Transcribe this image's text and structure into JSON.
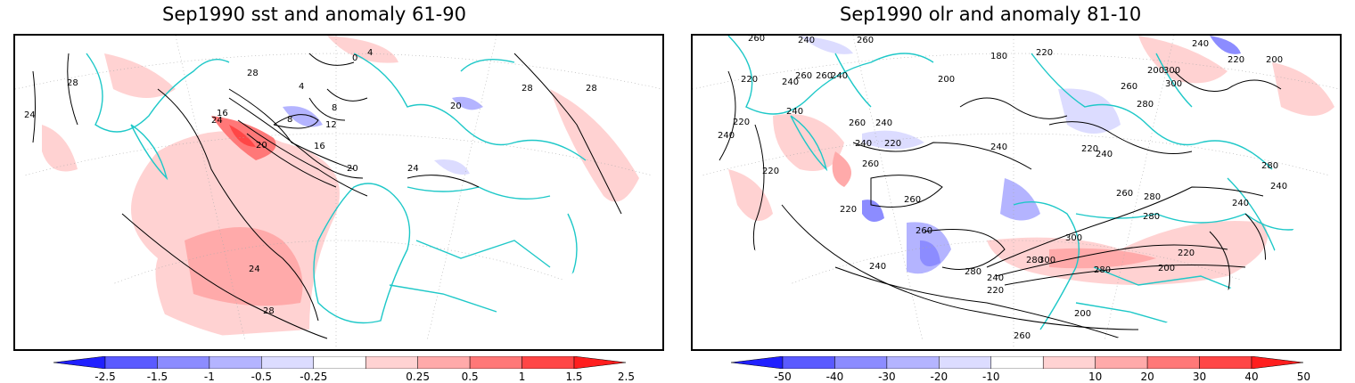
{
  "left_panel": {
    "title": "Sep1990 sst and anomaly 61-90",
    "contour_labels": [
      "24",
      "28",
      "28",
      "28",
      "4",
      "0",
      "4",
      "8",
      "8",
      "12",
      "16",
      "16",
      "20",
      "20",
      "24",
      "24",
      "20",
      "24",
      "28",
      "28"
    ],
    "colorbar": {
      "labels": [
        "-2.5",
        "-1.5",
        "-1",
        "-0.5",
        "-0.25",
        "0.25",
        "0.5",
        "1",
        "1.5",
        "2.5"
      ],
      "colors": [
        "#2020ff",
        "#5a5aff",
        "#8c8cff",
        "#b4b4ff",
        "#dcdcff",
        "#ffffff",
        "#ffd2d2",
        "#ffaaaa",
        "#ff7878",
        "#ff4646",
        "#ff1e1e"
      ]
    }
  },
  "right_panel": {
    "title": "Sep1990 olr and anomaly 81-10",
    "contour_labels": [
      "260",
      "240",
      "260",
      "260",
      "220",
      "180",
      "200",
      "220",
      "260",
      "240",
      "240",
      "200",
      "300",
      "300",
      "240",
      "220",
      "200",
      "240",
      "240",
      "260",
      "240",
      "220",
      "240",
      "220",
      "220",
      "260",
      "240",
      "220",
      "260",
      "240",
      "260",
      "280",
      "280",
      "240",
      "260",
      "280",
      "240",
      "220",
      "280",
      "300",
      "220",
      "280",
      "260",
      "240",
      "280",
      "300",
      "280",
      "200",
      "240",
      "220",
      "200",
      "260"
    ],
    "colorbar": {
      "labels": [
        "-50",
        "-40",
        "-30",
        "-20",
        "-10",
        "10",
        "20",
        "30",
        "40",
        "50"
      ],
      "colors": [
        "#2020ff",
        "#5a5aff",
        "#8c8cff",
        "#b4b4ff",
        "#dcdcff",
        "#ffffff",
        "#ffd2d2",
        "#ffaaaa",
        "#ff7878",
        "#ff4646",
        "#ff1e1e"
      ]
    }
  },
  "map_style": {
    "coastline_color": "#1ec8c8",
    "contour_color": "#000000",
    "grid_color": "#aaaaaa"
  }
}
